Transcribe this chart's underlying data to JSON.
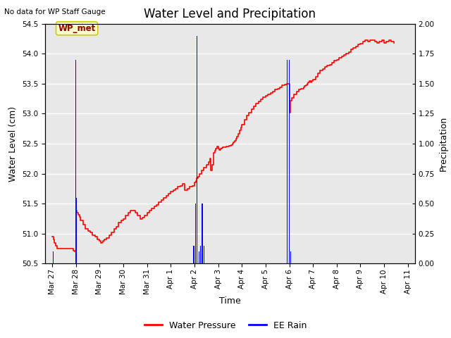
{
  "title": "Water Level and Precipitation",
  "subtitle": "No data for WP Staff Gauge",
  "xlabel": "Time",
  "ylabel_left": "Water Level (cm)",
  "ylabel_right": "Precipitation",
  "ylim_left": [
    50.5,
    54.5
  ],
  "ylim_right": [
    0.0,
    2.0
  ],
  "annotation_label": "WP_met",
  "annotation_color": "#8B0000",
  "annotation_bg": "#FFFFCC",
  "annotation_border": "#CCCC00",
  "background_color": "#E8E8E8",
  "grid_color": "white",
  "water_level_color": "red",
  "rain_color": "blue",
  "title_fontsize": 12,
  "axis_label_fontsize": 9,
  "tick_fontsize": 7.5,
  "xtick_labels": [
    "Mar 27",
    "Mar 28",
    "Mar 29",
    "Mar 30",
    "Mar 31",
    "Apr 1",
    "Apr 2",
    "Apr 3",
    "Apr 4",
    "Apr 5",
    "Apr 6",
    "Apr 7",
    "Apr 8",
    "Apr 9",
    "Apr 10",
    "Apr 11"
  ],
  "xtick_days": [
    0,
    1,
    2,
    3,
    4,
    5,
    6,
    7,
    8,
    9,
    10,
    11,
    12,
    13,
    14,
    15
  ],
  "water_level_points": [
    [
      0.0,
      50.95
    ],
    [
      0.05,
      50.9
    ],
    [
      0.1,
      50.85
    ],
    [
      0.15,
      50.8
    ],
    [
      0.2,
      50.75
    ],
    [
      0.9,
      50.72
    ],
    [
      0.95,
      50.7
    ],
    [
      1.0,
      50.75
    ],
    [
      1.02,
      51.38
    ],
    [
      1.05,
      51.35
    ],
    [
      1.1,
      51.32
    ],
    [
      1.15,
      51.28
    ],
    [
      1.2,
      51.22
    ],
    [
      1.3,
      51.15
    ],
    [
      1.4,
      51.08
    ],
    [
      1.5,
      51.05
    ],
    [
      1.6,
      51.02
    ],
    [
      1.7,
      50.98
    ],
    [
      1.8,
      50.95
    ],
    [
      1.9,
      50.9
    ],
    [
      2.0,
      50.88
    ],
    [
      2.05,
      50.85
    ],
    [
      2.1,
      50.86
    ],
    [
      2.15,
      50.88
    ],
    [
      2.2,
      50.9
    ],
    [
      2.3,
      50.93
    ],
    [
      2.4,
      50.97
    ],
    [
      2.5,
      51.02
    ],
    [
      2.6,
      51.08
    ],
    [
      2.7,
      51.12
    ],
    [
      2.8,
      51.18
    ],
    [
      2.9,
      51.22
    ],
    [
      3.0,
      51.25
    ],
    [
      3.1,
      51.3
    ],
    [
      3.2,
      51.35
    ],
    [
      3.3,
      51.38
    ],
    [
      3.4,
      51.38
    ],
    [
      3.5,
      51.35
    ],
    [
      3.6,
      51.3
    ],
    [
      3.7,
      51.25
    ],
    [
      3.8,
      51.27
    ],
    [
      3.9,
      51.3
    ],
    [
      4.0,
      51.35
    ],
    [
      4.1,
      51.38
    ],
    [
      4.2,
      51.42
    ],
    [
      4.3,
      51.45
    ],
    [
      4.4,
      51.48
    ],
    [
      4.5,
      51.52
    ],
    [
      4.6,
      51.56
    ],
    [
      4.7,
      51.6
    ],
    [
      4.8,
      51.63
    ],
    [
      4.9,
      51.67
    ],
    [
      5.0,
      51.7
    ],
    [
      5.1,
      51.73
    ],
    [
      5.2,
      51.75
    ],
    [
      5.3,
      51.78
    ],
    [
      5.4,
      51.8
    ],
    [
      5.5,
      51.83
    ],
    [
      5.6,
      51.72
    ],
    [
      5.7,
      51.75
    ],
    [
      5.8,
      51.78
    ],
    [
      5.9,
      51.8
    ],
    [
      6.0,
      51.85
    ],
    [
      6.05,
      51.88
    ],
    [
      6.1,
      51.92
    ],
    [
      6.15,
      51.95
    ],
    [
      6.2,
      52.0
    ],
    [
      6.3,
      52.05
    ],
    [
      6.4,
      52.1
    ],
    [
      6.5,
      52.15
    ],
    [
      6.6,
      52.2
    ],
    [
      6.65,
      52.25
    ],
    [
      6.7,
      52.05
    ],
    [
      6.75,
      52.15
    ],
    [
      6.8,
      52.35
    ],
    [
      6.85,
      52.38
    ],
    [
      6.9,
      52.42
    ],
    [
      6.95,
      52.45
    ],
    [
      7.0,
      52.42
    ],
    [
      7.05,
      52.4
    ],
    [
      7.1,
      52.42
    ],
    [
      7.15,
      52.43
    ],
    [
      7.2,
      52.44
    ],
    [
      7.25,
      52.44
    ],
    [
      7.3,
      52.44
    ],
    [
      7.35,
      52.45
    ],
    [
      7.4,
      52.45
    ],
    [
      7.45,
      52.46
    ],
    [
      7.5,
      52.47
    ],
    [
      7.55,
      52.48
    ],
    [
      7.6,
      52.5
    ],
    [
      7.65,
      52.52
    ],
    [
      7.7,
      52.55
    ],
    [
      7.75,
      52.58
    ],
    [
      7.8,
      52.62
    ],
    [
      7.85,
      52.67
    ],
    [
      7.9,
      52.72
    ],
    [
      7.95,
      52.77
    ],
    [
      8.0,
      52.82
    ],
    [
      8.1,
      52.9
    ],
    [
      8.2,
      52.97
    ],
    [
      8.3,
      53.02
    ],
    [
      8.4,
      53.07
    ],
    [
      8.5,
      53.12
    ],
    [
      8.6,
      53.17
    ],
    [
      8.7,
      53.2
    ],
    [
      8.8,
      53.24
    ],
    [
      8.9,
      53.27
    ],
    [
      9.0,
      53.3
    ],
    [
      9.1,
      53.32
    ],
    [
      9.2,
      53.35
    ],
    [
      9.3,
      53.37
    ],
    [
      9.4,
      53.4
    ],
    [
      9.5,
      53.42
    ],
    [
      9.6,
      53.44
    ],
    [
      9.7,
      53.47
    ],
    [
      9.8,
      53.49
    ],
    [
      9.9,
      53.5
    ],
    [
      10.0,
      53.02
    ],
    [
      10.05,
      53.22
    ],
    [
      10.1,
      53.26
    ],
    [
      10.2,
      53.32
    ],
    [
      10.3,
      53.37
    ],
    [
      10.4,
      53.4
    ],
    [
      10.5,
      53.42
    ],
    [
      10.6,
      53.44
    ],
    [
      10.65,
      53.46
    ],
    [
      10.7,
      53.48
    ],
    [
      10.75,
      53.5
    ],
    [
      10.8,
      53.52
    ],
    [
      10.85,
      53.54
    ],
    [
      10.9,
      53.52
    ],
    [
      10.95,
      53.54
    ],
    [
      11.0,
      53.57
    ],
    [
      11.1,
      53.62
    ],
    [
      11.2,
      53.67
    ],
    [
      11.3,
      53.72
    ],
    [
      11.4,
      53.75
    ],
    [
      11.5,
      53.78
    ],
    [
      11.6,
      53.8
    ],
    [
      11.7,
      53.82
    ],
    [
      11.8,
      53.85
    ],
    [
      11.9,
      53.88
    ],
    [
      12.0,
      53.9
    ],
    [
      12.1,
      53.93
    ],
    [
      12.2,
      53.95
    ],
    [
      12.3,
      53.98
    ],
    [
      12.4,
      54.0
    ],
    [
      12.5,
      54.03
    ],
    [
      12.6,
      54.07
    ],
    [
      12.7,
      54.1
    ],
    [
      12.8,
      54.12
    ],
    [
      12.9,
      54.15
    ],
    [
      13.0,
      54.17
    ],
    [
      13.1,
      54.2
    ],
    [
      13.2,
      54.22
    ],
    [
      13.3,
      54.2
    ],
    [
      13.4,
      54.22
    ],
    [
      13.5,
      54.22
    ],
    [
      13.6,
      54.2
    ],
    [
      13.7,
      54.18
    ],
    [
      13.8,
      54.2
    ],
    [
      13.9,
      54.22
    ],
    [
      14.0,
      54.18
    ],
    [
      14.1,
      54.2
    ],
    [
      14.2,
      54.22
    ],
    [
      14.3,
      54.2
    ],
    [
      14.4,
      54.18
    ]
  ],
  "rain_bars": [
    [
      0.05,
      0.1
    ],
    [
      1.0,
      1.7
    ],
    [
      1.02,
      0.55
    ],
    [
      5.95,
      0.15
    ],
    [
      6.0,
      0.15
    ],
    [
      6.05,
      0.5
    ],
    [
      6.1,
      1.9
    ],
    [
      6.12,
      1.9
    ],
    [
      6.2,
      0.1
    ],
    [
      6.25,
      0.15
    ],
    [
      6.3,
      0.5
    ],
    [
      6.35,
      0.5
    ],
    [
      6.4,
      0.15
    ],
    [
      9.92,
      1.7
    ],
    [
      10.0,
      1.7
    ],
    [
      10.05,
      0.1
    ]
  ]
}
